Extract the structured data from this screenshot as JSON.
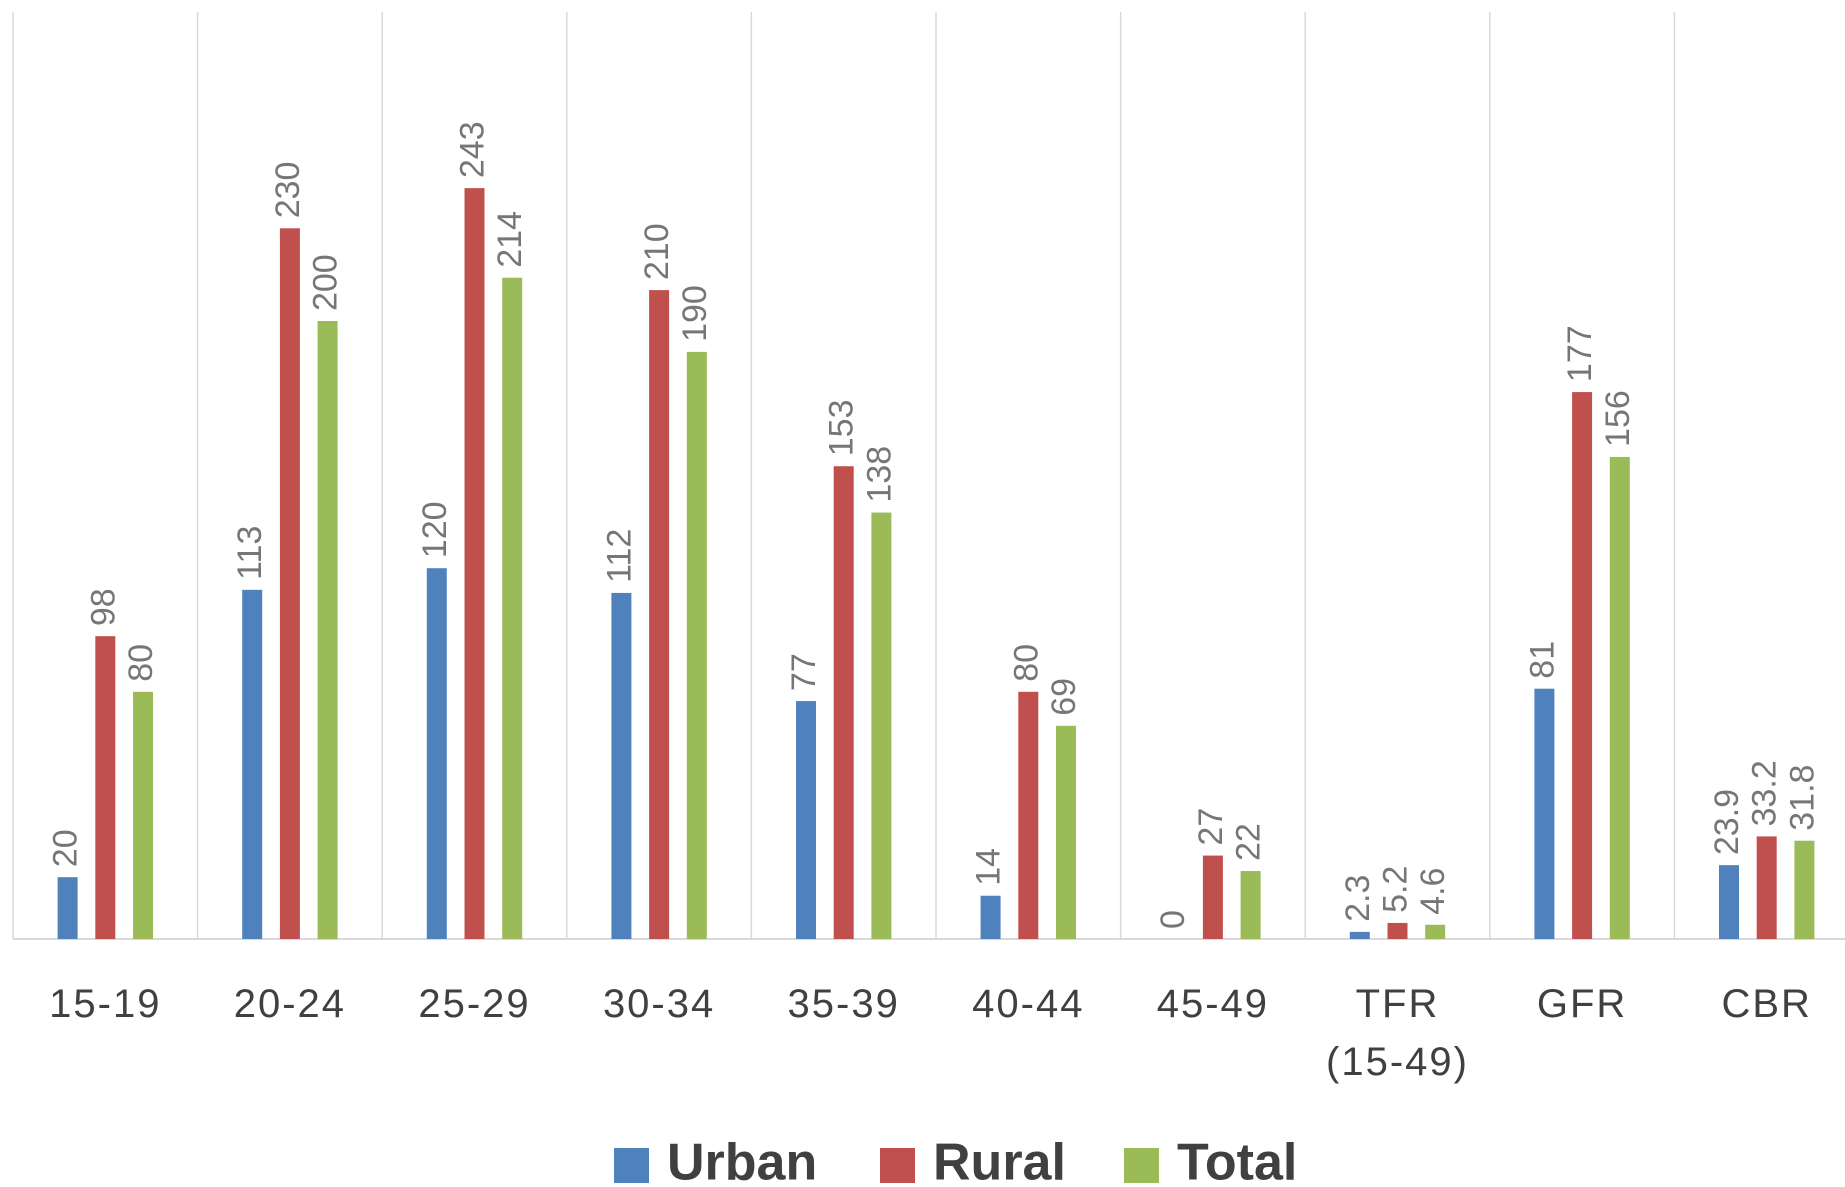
{
  "chart_data": {
    "type": "bar",
    "categories": [
      "15-19",
      "20-24",
      "25-29",
      "30-34",
      "35-39",
      "40-44",
      "45-49",
      "TFR\n(15-49)",
      "GFR",
      "CBR"
    ],
    "series": [
      {
        "name": "Urban",
        "color": "#4f81bd",
        "values": [
          20,
          113,
          120,
          112,
          77,
          14,
          0,
          2.3,
          81,
          23.9
        ]
      },
      {
        "name": "Rural",
        "color": "#c0504d",
        "values": [
          98,
          230,
          243,
          210,
          153,
          80,
          27,
          5.2,
          177,
          33.2
        ]
      },
      {
        "name": "Total",
        "color": "#9bbb59",
        "values": [
          80,
          200,
          214,
          190,
          138,
          69,
          22,
          4.6,
          156,
          31.8
        ]
      }
    ],
    "ylim": [
      0,
      300
    ]
  }
}
